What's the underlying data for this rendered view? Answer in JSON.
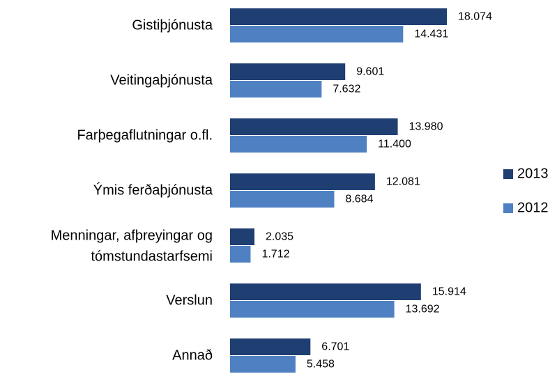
{
  "chart_data": {
    "type": "barh",
    "categories": [
      "Gistiþjónusta",
      "Veitingaþjónusta",
      "Farþegaflutningar o.fl.",
      "Ýmis ferðaþjónusta",
      [
        "Menningar, afþreyingar og",
        "tómstundastarfsemi"
      ],
      "Verslun",
      "Annað"
    ],
    "series": [
      {
        "name": "2013",
        "color": "#1f3e72",
        "values": [
          18074,
          9601,
          13980,
          12081,
          2035,
          15914,
          6701
        ],
        "value_labels": [
          "18.074",
          "9.601",
          "13.980",
          "12.081",
          "2.035",
          "15.914",
          "6.701"
        ]
      },
      {
        "name": "2012",
        "color": "#4f81c2",
        "values": [
          14431,
          7632,
          11400,
          8684,
          1712,
          13692,
          5458
        ],
        "value_labels": [
          "14.431",
          "7.632",
          "11.400",
          "8.684",
          "1.712",
          "13.692",
          "5.458"
        ]
      }
    ],
    "legend": "right"
  }
}
